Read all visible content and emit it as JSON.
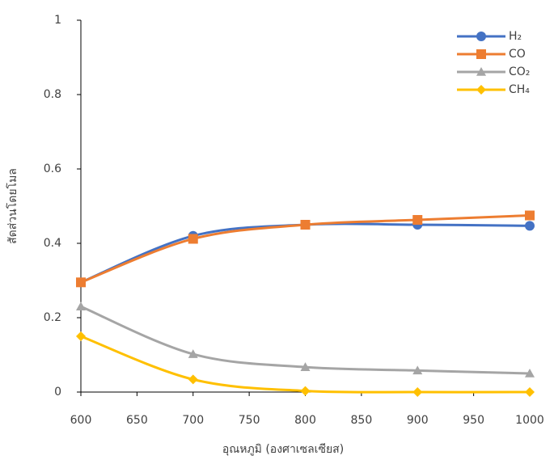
{
  "chart_data": {
    "type": "line",
    "x_label": "อุณหภูมิ (องศาเซลเซียส)",
    "y_label": "สัดส่วนโดยโมล",
    "x": [
      600,
      700,
      800,
      900,
      1000
    ],
    "xlim": [
      600,
      1000
    ],
    "xticks": [
      600,
      650,
      700,
      750,
      800,
      850,
      900,
      950,
      1000
    ],
    "ylim": [
      0,
      1
    ],
    "yticks": [
      0,
      0.2,
      0.4,
      0.6,
      0.8,
      1
    ],
    "grid": false,
    "smooth": true,
    "legend": "upper right",
    "series": [
      {
        "name": "H₂",
        "color": "#4472c4",
        "marker": "circle",
        "values": [
          0.295,
          0.42,
          0.45,
          0.45,
          0.447
        ]
      },
      {
        "name": "CO",
        "color": "#ed7d31",
        "marker": "square",
        "values": [
          0.295,
          0.412,
          0.45,
          0.463,
          0.475
        ]
      },
      {
        "name": "CO₂",
        "color": "#a5a5a5",
        "marker": "triangle",
        "values": [
          0.23,
          0.102,
          0.067,
          0.058,
          0.05
        ]
      },
      {
        "name": "CH₄",
        "color": "#ffc000",
        "marker": "diamond",
        "values": [
          0.15,
          0.034,
          0.003,
          0,
          0
        ]
      }
    ]
  }
}
